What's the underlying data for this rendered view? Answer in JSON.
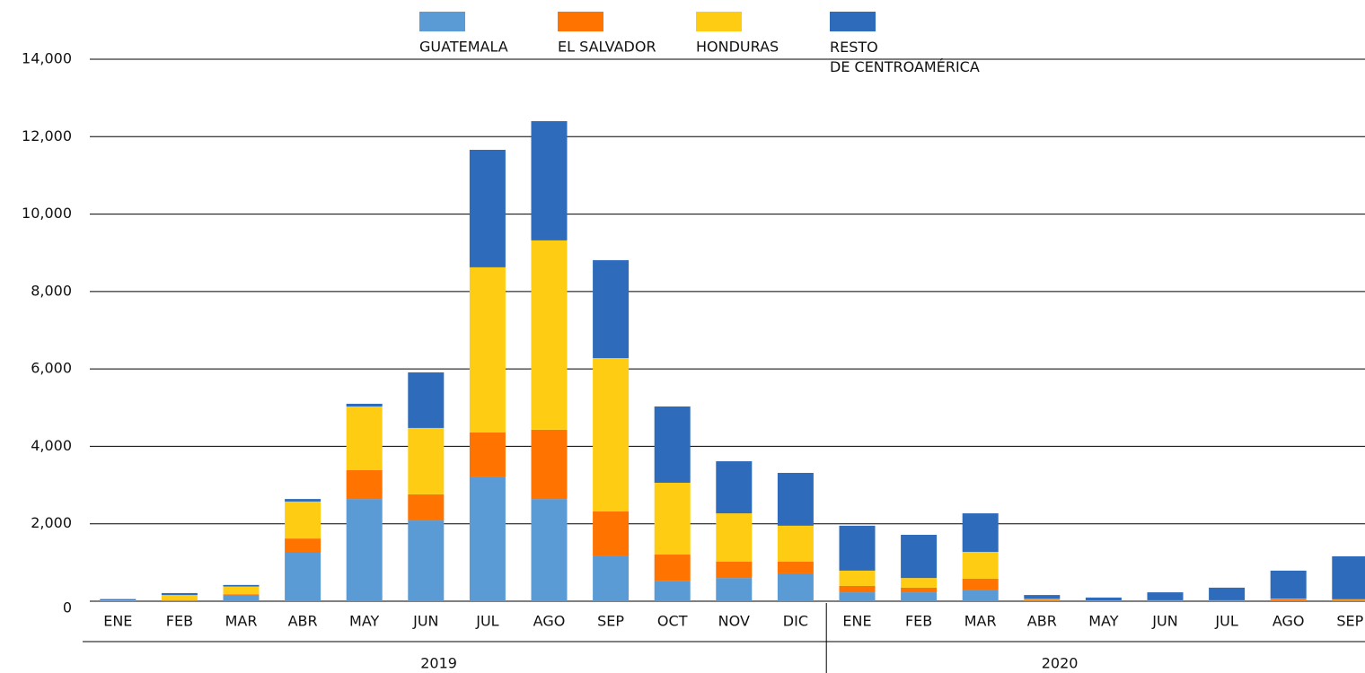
{
  "chart_data": {
    "type": "stacked_bar",
    "categories": [
      "ENE",
      "FEB",
      "MAR",
      "ABR",
      "MAY",
      "JUN",
      "JUL",
      "AGO",
      "SEP",
      "OCT",
      "NOV",
      "DIC",
      "ENE",
      "FEB",
      "MAR",
      "ABR",
      "MAY",
      "JUN",
      "JUL",
      "AGO",
      "SEP"
    ],
    "x_groups": [
      {
        "label": "2019",
        "span": 12
      },
      {
        "label": "2020",
        "span": 9
      }
    ],
    "series": [
      {
        "name": "GUATEMALA",
        "color": "#5b9bd5",
        "values": [
          10,
          20,
          150,
          1275,
          2640,
          2085,
          3200,
          2640,
          1160,
          530,
          600,
          720,
          230,
          230,
          300,
          20,
          10,
          10,
          10,
          20,
          20
        ]
      },
      {
        "name": "EL SALVADOR",
        "color": "#ff7300",
        "values": [
          5,
          10,
          30,
          345,
          745,
          675,
          1160,
          1790,
          1160,
          675,
          420,
          300,
          165,
          120,
          280,
          20,
          5,
          10,
          10,
          40,
          20
        ]
      },
      {
        "name": "HONDURAS",
        "color": "#ffcc14",
        "values": [
          10,
          130,
          200,
          955,
          1645,
          1715,
          4265,
          4890,
          3960,
          1855,
          1250,
          930,
          395,
          250,
          695,
          20,
          5,
          5,
          5,
          10,
          10
        ]
      },
      {
        "name": "RESTO\nDE CENTROAMÉRICA",
        "color": "#2e6bba",
        "values": [
          30,
          50,
          40,
          65,
          70,
          1435,
          3035,
          3080,
          2530,
          1970,
          1345,
          1365,
          1160,
          1115,
          995,
          100,
          75,
          205,
          325,
          720,
          1110
        ]
      }
    ],
    "ylim": [
      0,
      14000
    ],
    "yticks": [
      0,
      {
        "value": 2000,
        "label": "2,000"
      },
      {
        "value": 4000,
        "label": "4,000"
      },
      {
        "value": 6000,
        "label": "6,000"
      },
      {
        "value": 8000,
        "label": "8,000"
      },
      {
        "value": 10000,
        "label": "10,000"
      },
      {
        "value": 12000,
        "label": "12,000"
      },
      {
        "value": 14000,
        "label": "14,000"
      }
    ],
    "grid": true
  }
}
